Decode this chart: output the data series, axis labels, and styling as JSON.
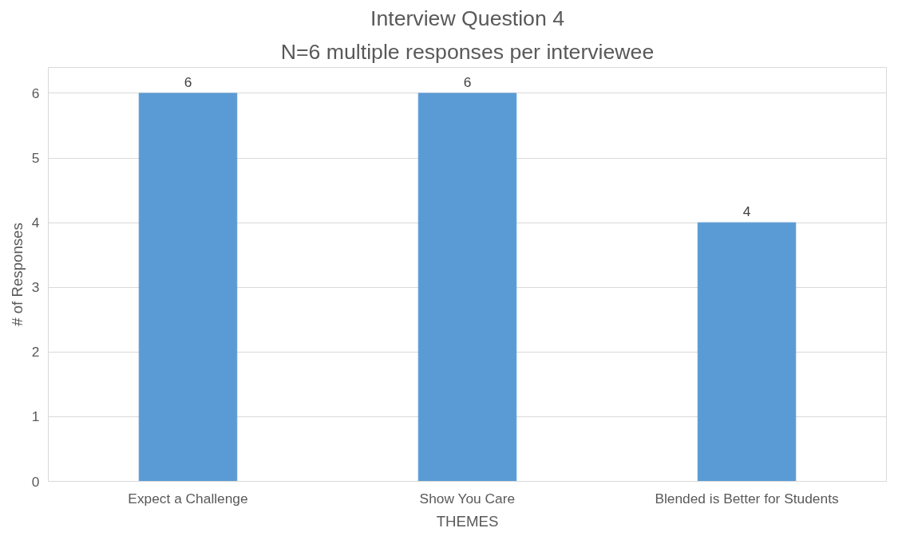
{
  "chart_data": {
    "type": "bar",
    "title": "Interview Question 4",
    "subtitle": "N=6 multiple responses per interviewee",
    "xlabel": "THEMES",
    "ylabel": "# of Responses",
    "categories": [
      "Expect a Challenge",
      "Show You Care",
      "Blended is Better for Students"
    ],
    "values": [
      6,
      6,
      4
    ],
    "color": "#5b9bd5",
    "ylim": [
      0,
      6.4
    ],
    "yticks": [
      0,
      1,
      2,
      3,
      4,
      5,
      6
    ],
    "grid": "y",
    "data_labels": true
  }
}
